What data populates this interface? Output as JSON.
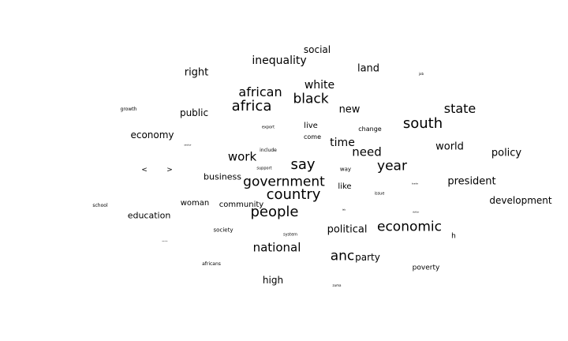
{
  "title": "",
  "text_color": "#000000",
  "background_color": "#ffffff",
  "words": [
    {
      "text": "social",
      "weight": 12
    },
    {
      "text": "inequality",
      "weight": 14
    },
    {
      "text": "land",
      "weight": 13
    },
    {
      "text": "right",
      "weight": 13
    },
    {
      "text": "job",
      "weight": 4
    },
    {
      "text": "african",
      "weight": 16
    },
    {
      "text": "white",
      "weight": 14
    },
    {
      "text": "africa",
      "weight": 18
    },
    {
      "text": "black",
      "weight": 17
    },
    {
      "text": "new",
      "weight": 13
    },
    {
      "text": "state",
      "weight": 16
    },
    {
      "text": "growth",
      "weight": 6
    },
    {
      "text": "public",
      "weight": 12
    },
    {
      "text": "south",
      "weight": 18
    },
    {
      "text": "live",
      "weight": 10
    },
    {
      "text": "change",
      "weight": 8
    },
    {
      "text": "export",
      "weight": 5
    },
    {
      "text": "economy",
      "weight": 12
    },
    {
      "text": "come",
      "weight": 8
    },
    {
      "text": "time",
      "weight": 14
    },
    {
      "text": "world",
      "weight": 13
    },
    {
      "text": "sector",
      "weight": 3
    },
    {
      "text": "include",
      "weight": 6
    },
    {
      "text": "need",
      "weight": 15
    },
    {
      "text": "policy",
      "weight": 13
    },
    {
      "text": "work",
      "weight": 15
    },
    {
      "text": "say",
      "weight": 18
    },
    {
      "text": "year",
      "weight": 17
    },
    {
      "text": "<",
      "weight": 9
    },
    {
      "text": ">",
      "weight": 9
    },
    {
      "text": "support",
      "weight": 5
    },
    {
      "text": "way",
      "weight": 7
    },
    {
      "text": "business",
      "weight": 11
    },
    {
      "text": "government",
      "weight": 17
    },
    {
      "text": "president",
      "weight": 13
    },
    {
      "text": "like",
      "weight": 10
    },
    {
      "text": "trade",
      "weight": 3
    },
    {
      "text": "country",
      "weight": 18
    },
    {
      "text": "issue",
      "weight": 5
    },
    {
      "text": "development",
      "weight": 12
    },
    {
      "text": "woman",
      "weight": 10
    },
    {
      "text": "community",
      "weight": 10
    },
    {
      "text": "school",
      "weight": 6
    },
    {
      "text": "people",
      "weight": 18
    },
    {
      "text": "education",
      "weight": 11
    },
    {
      "text": "lab",
      "weight": 3
    },
    {
      "text": "dollar",
      "weight": 3
    },
    {
      "text": "economic",
      "weight": 17
    },
    {
      "text": "political",
      "weight": 13
    },
    {
      "text": "society",
      "weight": 7
    },
    {
      "text": "system",
      "weight": 5
    },
    {
      "text": "h",
      "weight": 9
    },
    {
      "text": "service",
      "weight": 2
    },
    {
      "text": "national",
      "weight": 15
    },
    {
      "text": "anc",
      "weight": 17
    },
    {
      "text": "party",
      "weight": 12
    },
    {
      "text": "africans",
      "weight": 6
    },
    {
      "text": "poverty",
      "weight": 9
    },
    {
      "text": "high",
      "weight": 12
    },
    {
      "text": "zuma",
      "weight": 4
    }
  ]
}
